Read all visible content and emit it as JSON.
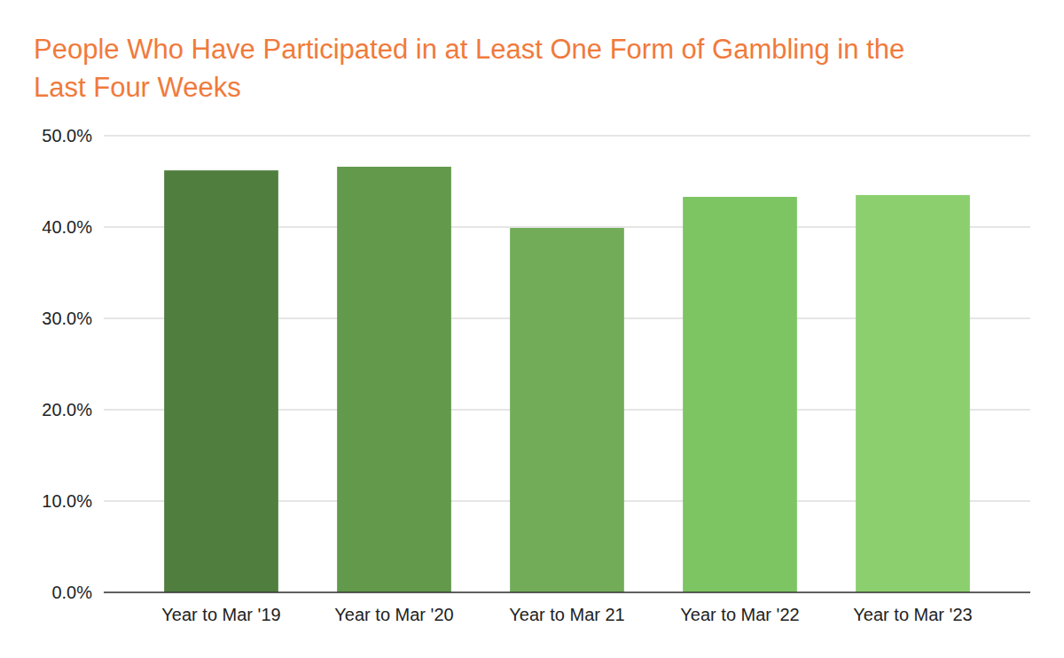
{
  "chart_data": {
    "type": "bar",
    "title": "People Who Have Participated in at Least One Form of Gambling in the Last Four Weeks",
    "categories": [
      "Year to Mar '19",
      "Year to Mar '20",
      "Year to Mar 21",
      "Year to Mar '22",
      "Year to Mar '23"
    ],
    "values": [
      46.2,
      46.6,
      39.9,
      43.3,
      43.5
    ],
    "colors": [
      "#507e3e",
      "#62994b",
      "#72ac58",
      "#7dc462",
      "#8ccf6e"
    ],
    "ylim": [
      0,
      50
    ],
    "yticks": [
      {
        "value": 0,
        "label": "0.0%"
      },
      {
        "value": 10,
        "label": "10.0%"
      },
      {
        "value": 20,
        "label": "20.0%"
      },
      {
        "value": 30,
        "label": "30.0%"
      },
      {
        "value": 40,
        "label": "40.0%"
      },
      {
        "value": 50,
        "label": "50.0%"
      }
    ],
    "grid": true
  }
}
